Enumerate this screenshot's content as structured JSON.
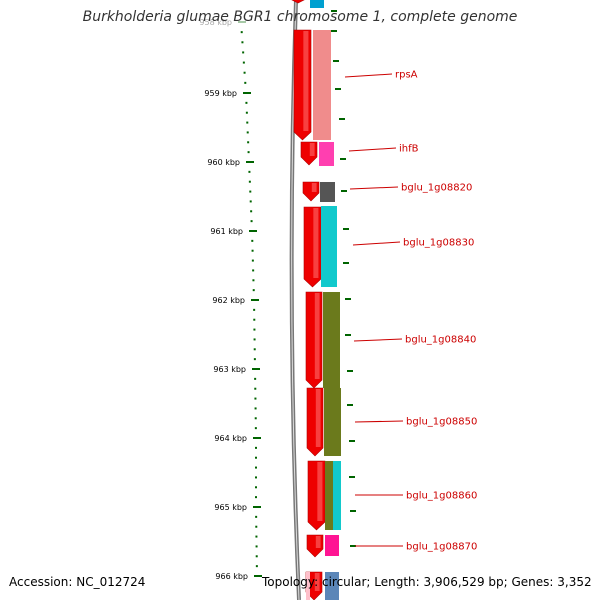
{
  "title": "Burkholderia glumae BGR1 chromosome 1, complete genome",
  "footer": {
    "accession": "Accession: NC_012724",
    "topology": "Topology: circular; Length: 3,906,529 bp; Genes: 3,352"
  },
  "scale_ticks": [
    {
      "label": "958 kbp",
      "faded": true
    },
    {
      "label": "959 kbp"
    },
    {
      "label": "960 kbp"
    },
    {
      "label": "961 kbp"
    },
    {
      "label": "962 kbp"
    },
    {
      "label": "963 kbp"
    },
    {
      "label": "964 kbp"
    },
    {
      "label": "965 kbp"
    },
    {
      "label": "966 kbp"
    }
  ],
  "genes": [
    {
      "label": "rpsA",
      "color": "#f08c8c"
    },
    {
      "label": "ihfB",
      "color": "#ff3fb0"
    },
    {
      "label": "bglu_1g08820",
      "color": "#555555"
    },
    {
      "label": "bglu_1g08830",
      "color": "#12c9cc"
    },
    {
      "label": "bglu_1g08840",
      "color": "#6b7a1c"
    },
    {
      "label": "bglu_1g08850",
      "color": "#6b7a1c"
    },
    {
      "label": "bglu_1g08860",
      "color": "#12c9cc"
    },
    {
      "label": "bglu_1g08870",
      "color": "#ff1493"
    }
  ],
  "colors": {
    "cds_strand": "#ee0000",
    "backbone": "#777777",
    "tick": "#006400",
    "label": "#cc0000"
  }
}
